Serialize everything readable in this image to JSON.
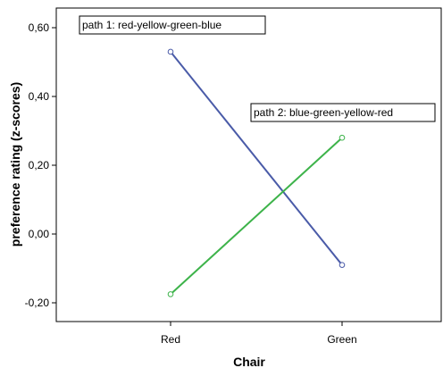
{
  "chart_data": {
    "type": "line",
    "xlabel": "Chair",
    "ylabel": "preference rating (z-scores)",
    "categories": [
      "Red",
      "Green"
    ],
    "ylim": [
      -0.22,
      0.62
    ],
    "yticks": [
      -0.2,
      0.0,
      0.2,
      0.4,
      0.6
    ],
    "ytick_labels": [
      "-0,20",
      "0,00",
      "0,20",
      "0,40",
      "0,60"
    ],
    "grid": false,
    "series": [
      {
        "name": "path 1: red-yellow-green-blue",
        "values": [
          0.53,
          -0.09
        ],
        "color": "#4a5ba8"
      },
      {
        "name": "path 2: blue-green-yellow-red",
        "values": [
          -0.175,
          0.28
        ],
        "color": "#3db34a"
      }
    ],
    "annotations": [
      {
        "text": "path 1: red-yellow-green-blue",
        "series_index": 0
      },
      {
        "text": "path 2: blue-green-yellow-red",
        "series_index": 1
      }
    ]
  }
}
